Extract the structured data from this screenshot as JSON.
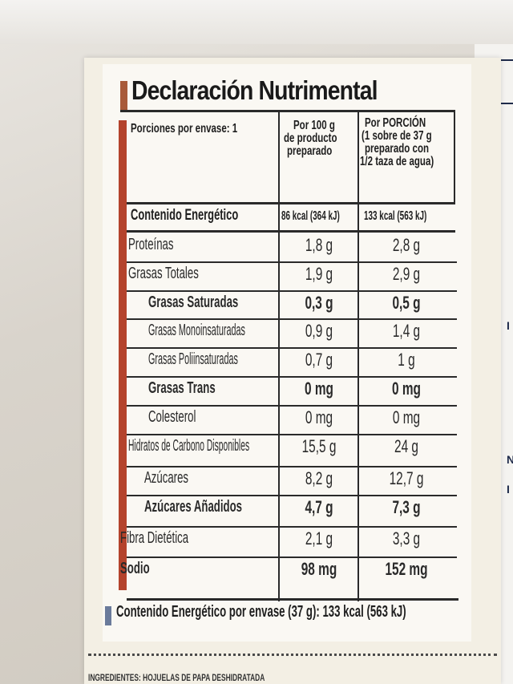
{
  "label": {
    "title": "Declaración Nutrimental",
    "header": {
      "servings": "Porciones por envase: 1",
      "col1": [
        "Por 100 g",
        "de producto",
        "preparado"
      ],
      "col2": [
        "Por PORCIÓN",
        "(1 sobre de 37 g",
        "preparado con",
        "1/2 taza de agua)"
      ]
    },
    "energy": {
      "label": "Contenido Energético",
      "per100": "86 kcal (364 kJ)",
      "per_portion": "133 kcal (563 kJ)"
    },
    "rows": [
      {
        "label": "Proteínas",
        "per100": "1,8 g",
        "per_portion": "2,8 g"
      },
      {
        "label": "Grasas Totales",
        "per100": "1,9 g",
        "per_portion": "2,9 g"
      },
      {
        "label": "Grasas Saturadas",
        "per100": "0,3 g",
        "per_portion": "0,5 g"
      },
      {
        "label": "Grasas Monoinsaturadas",
        "per100": "0,9 g",
        "per_portion": "1,4 g"
      },
      {
        "label": "Grasas Poliinsaturadas",
        "per100": "0,7 g",
        "per_portion": "1 g"
      },
      {
        "label": "Grasas Trans",
        "per100": "0 mg",
        "per_portion": "0 mg"
      },
      {
        "label": "Colesterol",
        "per100": "0 mg",
        "per_portion": "0 mg"
      },
      {
        "label": "Hidratos de Carbono Disponibles",
        "per100": "15,5 g",
        "per_portion": "24 g"
      },
      {
        "label": "Azúcares",
        "per100": "8,2 g",
        "per_portion": "12,7 g"
      },
      {
        "label": "Azúcares Añadidos",
        "per100": "4,7 g",
        "per_portion": "7,3 g"
      },
      {
        "label": "Fibra Dietética",
        "per100": "2,1 g",
        "per_portion": "3,3 g"
      },
      {
        "label": "Sodio",
        "per100": "98 mg",
        "per_portion": "152 mg"
      }
    ],
    "footer": "Contenido Energético por envase (37 g): 133 kcal (563 kJ)",
    "ingredients_fragment": "INGREDIENTES: HOJUELAS DE PAPA DESHIDRATADA"
  }
}
